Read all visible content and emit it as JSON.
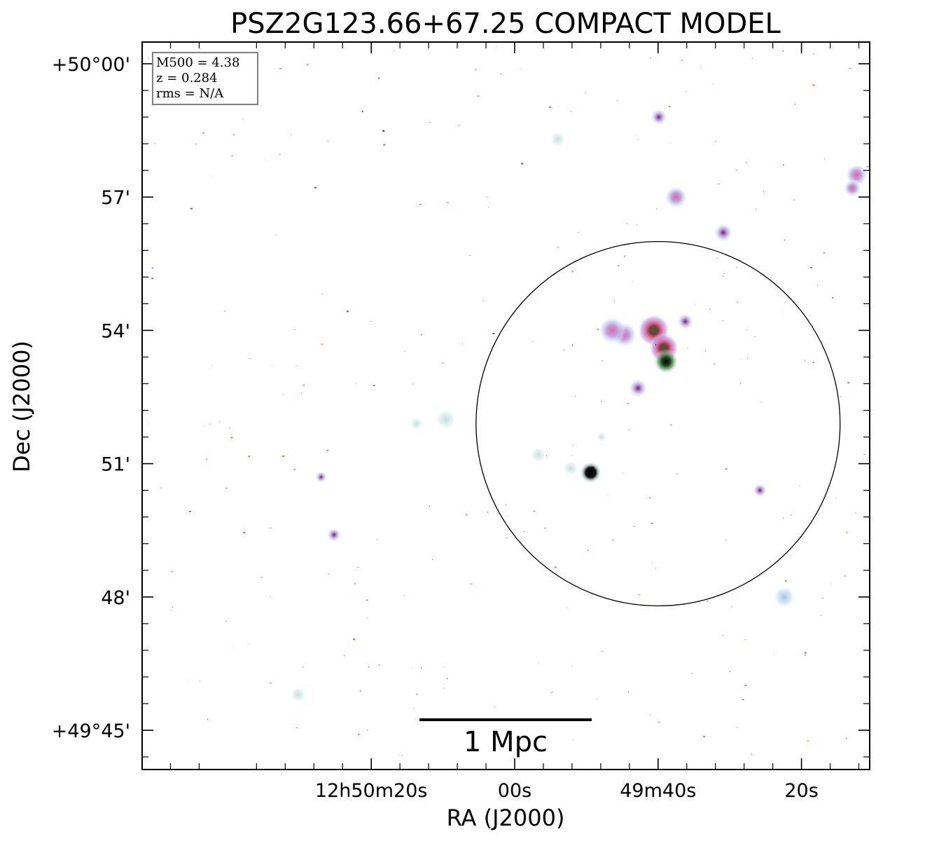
{
  "chart_data": {
    "type": "image",
    "title": "PSZ2G123.66+67.25 COMPACT MODEL",
    "xlabel": "RA (J2000)",
    "ylabel": "Dec (J2000)",
    "x_ticks": [
      {
        "label": "12h50m20s",
        "ra_sec": 20
      },
      {
        "label": "00s",
        "ra_sec": 0
      },
      {
        "label": "49m40s",
        "ra_sec": -20
      },
      {
        "label": "20s",
        "ra_sec": -40
      },
      {
        "label": "00s",
        "ra_sec": -60
      }
    ],
    "y_ticks": [
      {
        "label": "+50°00'",
        "dec_arcmin": 0
      },
      {
        "label": "57'",
        "dec_arcmin": -3
      },
      {
        "label": "54'",
        "dec_arcmin": -6
      },
      {
        "label": "51'",
        "dec_arcmin": -9
      },
      {
        "label": "48'",
        "dec_arcmin": -12
      },
      {
        "label": "+49°45'",
        "dec_arcmin": -15
      }
    ],
    "info_box": {
      "lines": [
        "M500 = 4.38",
        "z = 0.284",
        "rms = N/A"
      ]
    },
    "scale_bar": {
      "label": "1 Mpc"
    },
    "aperture_circle": {
      "center_ra_sec": -20,
      "center_dec_arcmin": -8.1,
      "radius_arcmin": 4.1
    },
    "sources": [
      {
        "ra_sec": -15.3,
        "dec_arcmin": -6.1,
        "size": 1.0,
        "kind": "extended"
      },
      {
        "ra_sec": -13.6,
        "dec_arcmin": -6.0,
        "size": 1.1,
        "kind": "extended"
      },
      {
        "ra_sec": -19.4,
        "dec_arcmin": -6.0,
        "size": 1.3,
        "kind": "extended-bright"
      },
      {
        "ra_sec": -20.8,
        "dec_arcmin": -6.4,
        "size": 1.2,
        "kind": "extended-bright"
      },
      {
        "ra_sec": -21.1,
        "dec_arcmin": -6.7,
        "size": 1.0,
        "kind": "core"
      },
      {
        "ra_sec": -23.8,
        "dec_arcmin": -5.8,
        "size": 0.7,
        "kind": "compact"
      },
      {
        "ra_sec": -17.2,
        "dec_arcmin": -7.3,
        "size": 0.8,
        "kind": "compact"
      },
      {
        "ra_sec": -10.6,
        "dec_arcmin": -9.2,
        "size": 0.9,
        "kind": "core-black"
      },
      {
        "ra_sec": 9.6,
        "dec_arcmin": -8.0,
        "size": 0.8,
        "kind": "faint"
      },
      {
        "ra_sec": 13.7,
        "dec_arcmin": -8.1,
        "size": 0.5,
        "kind": "faint"
      },
      {
        "ra_sec": -3.3,
        "dec_arcmin": -8.8,
        "size": 0.6,
        "kind": "faint"
      },
      {
        "ra_sec": -7.8,
        "dec_arcmin": -9.1,
        "size": 0.6,
        "kind": "faint"
      },
      {
        "ra_sec": -12.1,
        "dec_arcmin": -8.4,
        "size": 0.4,
        "kind": "faint"
      },
      {
        "ra_sec": -34.2,
        "dec_arcmin": -9.6,
        "size": 0.6,
        "kind": "compact"
      },
      {
        "ra_sec": -20.1,
        "dec_arcmin": -1.2,
        "size": 0.7,
        "kind": "compact"
      },
      {
        "ra_sec": -22.5,
        "dec_arcmin": -3.0,
        "size": 0.9,
        "kind": "extended"
      },
      {
        "ra_sec": -29.1,
        "dec_arcmin": -3.8,
        "size": 0.8,
        "kind": "compact"
      },
      {
        "ra_sec": -6.0,
        "dec_arcmin": -1.7,
        "size": 0.6,
        "kind": "faint"
      },
      {
        "ra_sec": -47.7,
        "dec_arcmin": -2.5,
        "size": 0.9,
        "kind": "extended"
      },
      {
        "ra_sec": -47.1,
        "dec_arcmin": -2.8,
        "size": 0.7,
        "kind": "extended"
      },
      {
        "ra_sec": -52.6,
        "dec_arcmin": 0.2,
        "size": 1.4,
        "kind": "extended-bright"
      },
      {
        "ra_sec": -53.5,
        "dec_arcmin": 0.5,
        "size": 0.8,
        "kind": "core-black"
      },
      {
        "ra_sec": -51.8,
        "dec_arcmin": -0.2,
        "size": 1.0,
        "kind": "extended"
      },
      {
        "ra_sec": -56.9,
        "dec_arcmin": -1.2,
        "size": 0.5,
        "kind": "compact"
      },
      {
        "ra_sec": -58.4,
        "dec_arcmin": -3.8,
        "size": 0.5,
        "kind": "faint"
      },
      {
        "ra_sec": -37.6,
        "dec_arcmin": -12.0,
        "size": 0.9,
        "kind": "diffuse"
      },
      {
        "ra_sec": 25.2,
        "dec_arcmin": -10.6,
        "size": 0.6,
        "kind": "compact"
      },
      {
        "ra_sec": 27.0,
        "dec_arcmin": -9.3,
        "size": 0.5,
        "kind": "compact"
      },
      {
        "ra_sec": 30.2,
        "dec_arcmin": -14.2,
        "size": 0.6,
        "kind": "faint"
      },
      {
        "ra_sec": -64.3,
        "dec_arcmin": -12.8,
        "size": 0.5,
        "kind": "compact"
      }
    ]
  }
}
